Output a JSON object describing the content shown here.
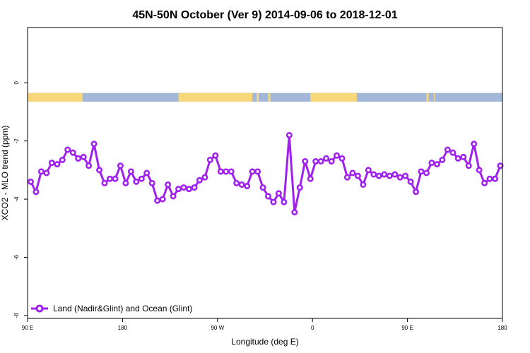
{
  "chart_data": {
    "type": "line",
    "title": "45N-50N October (Ver 9)   2014-09-06 to 2018-12-01",
    "xlabel": "Longitude (deg E)",
    "ylabel": "XCO2 - MLO trend (ppm)",
    "xlim": [
      90,
      540
    ],
    "ylim": [
      -8.1,
      1.9
    ],
    "x_ticks": [
      {
        "value": 90,
        "label": "90 E"
      },
      {
        "value": 180,
        "label": "180"
      },
      {
        "value": 270,
        "label": "90 W"
      },
      {
        "value": 360,
        "label": "0"
      },
      {
        "value": 450,
        "label": "90 E"
      },
      {
        "value": 540,
        "label": "180"
      }
    ],
    "y_ticks": [
      {
        "value": 0,
        "label": "0"
      },
      {
        "value": -2,
        "label": "-2"
      },
      {
        "value": -4,
        "label": "-4"
      },
      {
        "value": -6,
        "label": "-6"
      },
      {
        "value": -8,
        "label": "-8"
      }
    ],
    "grid": false,
    "legend_position": "bottom-left",
    "land_ocean_strip": {
      "y_range": [
        -0.65,
        -0.35
      ],
      "land_color": "#f7d77a",
      "ocean_color": "#a3b8d9",
      "land_segments": [
        [
          90,
          142
        ],
        [
          233,
          303
        ],
        [
          307,
          309
        ],
        [
          318,
          320
        ],
        [
          358,
          402
        ],
        [
          468,
          470
        ],
        [
          475,
          476
        ]
      ]
    },
    "series": [
      {
        "name": "Land (Nadir&Glint) and Ocean (Glint)",
        "color": "#a020f0",
        "x": [
          93,
          98,
          103,
          108,
          113,
          118,
          123,
          128,
          133,
          138,
          143,
          148,
          153,
          158,
          163,
          168,
          173,
          178,
          183,
          188,
          193,
          198,
          203,
          208,
          213,
          218,
          223,
          228,
          233,
          238,
          243,
          248,
          253,
          258,
          263,
          268,
          273,
          278,
          283,
          288,
          293,
          298,
          303,
          308,
          313,
          318,
          323,
          328,
          333,
          338,
          343,
          348,
          353,
          358,
          363,
          368,
          373,
          378,
          383,
          388,
          393,
          398,
          403,
          408,
          413,
          418,
          423,
          428,
          433,
          438,
          443,
          448,
          453,
          458,
          463,
          468,
          473,
          478,
          483,
          488,
          493,
          498,
          503,
          508,
          513,
          518,
          523,
          528,
          533,
          538
        ],
        "y": [
          -3.4,
          -3.75,
          -3.05,
          -3.1,
          -2.75,
          -2.8,
          -2.65,
          -2.3,
          -2.4,
          -2.6,
          -2.55,
          -2.85,
          -2.1,
          -3.0,
          -3.45,
          -3.3,
          -3.3,
          -2.85,
          -3.45,
          -3.05,
          -3.4,
          -3.3,
          -3.1,
          -3.45,
          -4.05,
          -4.0,
          -3.5,
          -3.9,
          -3.65,
          -3.6,
          -3.65,
          -3.6,
          -3.35,
          -3.25,
          -2.65,
          -2.5,
          -3.05,
          -3.05,
          -3.05,
          -3.45,
          -3.5,
          -3.55,
          -3.05,
          -3.05,
          -3.6,
          -3.9,
          -4.1,
          -3.8,
          -4.1,
          -1.8,
          -4.45,
          -3.6,
          -2.7,
          -3.3,
          -2.7,
          -2.7,
          -2.6,
          -2.7,
          -2.5,
          -2.6,
          -3.25,
          -3.1,
          -3.2,
          -3.5,
          -3.0,
          -3.15,
          -3.2,
          -3.15,
          -3.2,
          -3.15,
          -3.25,
          -3.2,
          -3.4,
          -3.75,
          -3.05,
          -3.1,
          -2.75,
          -2.8,
          -2.65,
          -2.3,
          -2.4,
          -2.6,
          -2.55,
          -2.85,
          -2.1,
          -3.0,
          -3.45,
          -3.3,
          -3.3,
          -2.85
        ]
      }
    ]
  }
}
